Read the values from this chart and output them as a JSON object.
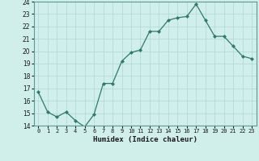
{
  "x": [
    0,
    1,
    2,
    3,
    4,
    5,
    6,
    7,
    8,
    9,
    10,
    11,
    12,
    13,
    14,
    15,
    16,
    17,
    18,
    19,
    20,
    21,
    22,
    23
  ],
  "y": [
    16.7,
    15.1,
    14.7,
    15.1,
    14.4,
    13.9,
    14.9,
    17.4,
    17.4,
    19.2,
    19.9,
    20.1,
    21.6,
    21.6,
    22.5,
    22.7,
    22.8,
    23.8,
    22.5,
    21.2,
    21.2,
    20.4,
    19.6,
    19.4
  ],
  "ylim": [
    14,
    24
  ],
  "xlim": [
    -0.5,
    23.5
  ],
  "yticks": [
    14,
    15,
    16,
    17,
    18,
    19,
    20,
    21,
    22,
    23,
    24
  ],
  "xtick_labels": [
    "0",
    "1",
    "2",
    "3",
    "4",
    "5",
    "6",
    "7",
    "8",
    "9",
    "10",
    "11",
    "12",
    "13",
    "14",
    "15",
    "16",
    "17",
    "18",
    "19",
    "20",
    "21",
    "22",
    "23"
  ],
  "xlabel": "Humidex (Indice chaleur)",
  "line_color": "#2d7a6e",
  "marker_color": "#2d7a6e",
  "bg_color": "#d0eeea",
  "grid_color": "#b0d8d4"
}
